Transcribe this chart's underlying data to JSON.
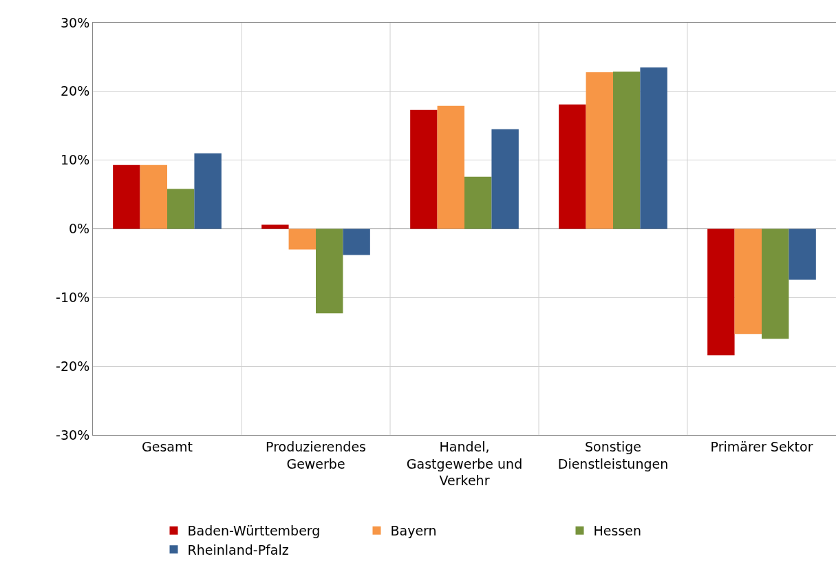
{
  "chart_data": {
    "type": "bar",
    "categories": [
      "Gesamt",
      "Produzierendes Gewerbe",
      "Handel, Gastgewerbe und Verkehr",
      "Sonstige Dienstleistungen",
      "Primärer Sektor"
    ],
    "series": [
      {
        "name": "Baden-Württemberg",
        "color": "#c00000",
        "values": [
          9.3,
          0.6,
          17.3,
          18.1,
          -18.4
        ]
      },
      {
        "name": "Bayern",
        "color": "#f79646",
        "values": [
          9.3,
          -3.0,
          17.9,
          22.8,
          -15.3
        ]
      },
      {
        "name": "Hessen",
        "color": "#77933c",
        "values": [
          5.8,
          -12.3,
          7.6,
          22.9,
          -16.0
        ]
      },
      {
        "name": "Rheinland-Pfalz",
        "color": "#376092",
        "values": [
          11.0,
          -3.8,
          14.5,
          23.5,
          -7.4
        ]
      }
    ],
    "ylim": [
      -30,
      30
    ],
    "yticks": [
      {
        "value": -30,
        "label": "-30%"
      },
      {
        "value": -20,
        "label": "-20%"
      },
      {
        "value": -10,
        "label": "-10%"
      },
      {
        "value": 0,
        "label": "0%"
      },
      {
        "value": 10,
        "label": "10%"
      },
      {
        "value": 20,
        "label": "20%"
      },
      {
        "value": 30,
        "label": "30%"
      }
    ],
    "grid": true,
    "legend": "bottom"
  }
}
